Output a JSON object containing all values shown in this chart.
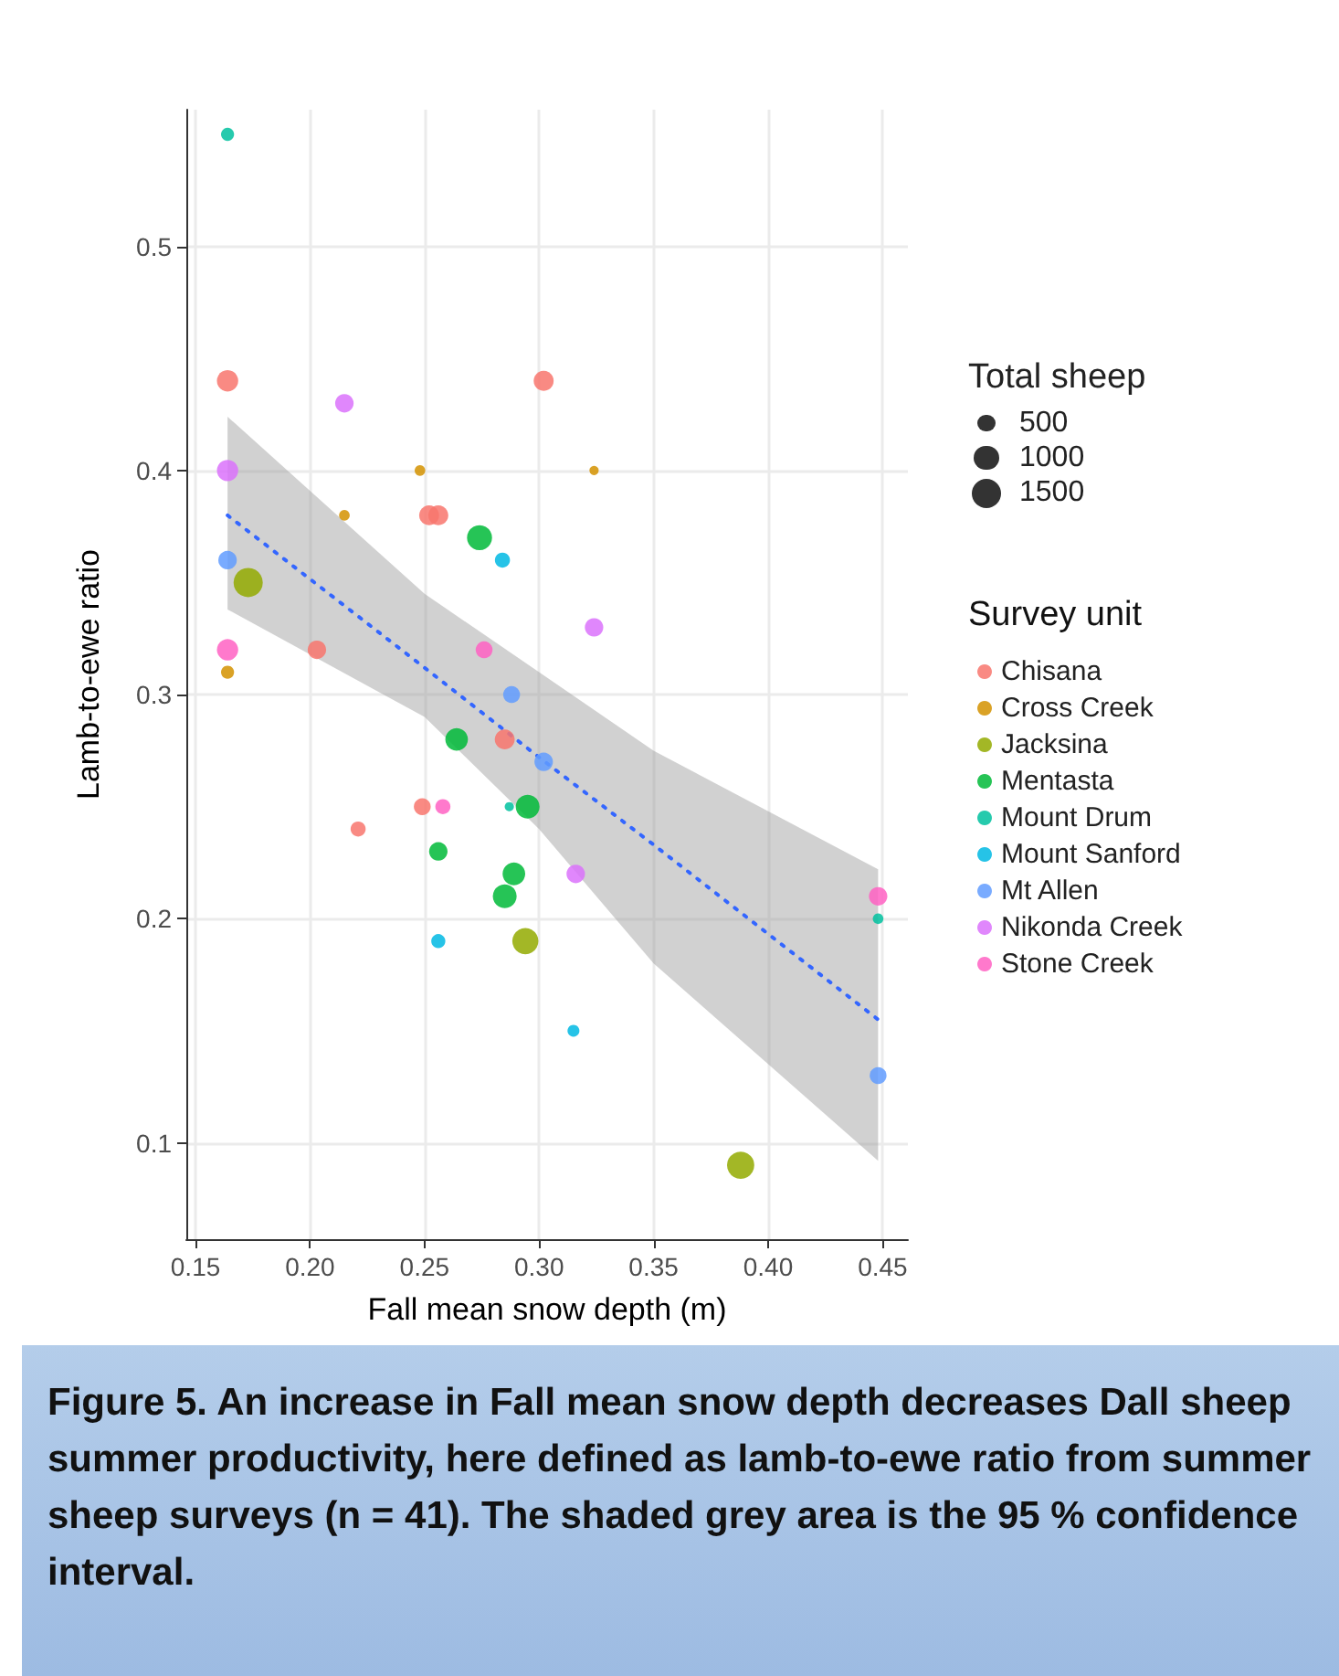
{
  "chart_data": {
    "type": "bubble",
    "xlabel": "Fall mean snow depth (m)",
    "ylabel": "Lamb-to-ewe ratio",
    "legend_title": "Survey unit",
    "annotations": [
      "Total sheep",
      "Figure 5. An increase in Fall mean snow depth decreases Dall sheep summer productivity, here defined as lamb-to-ewe ratio from summer sheep surveys (n = 41). The shaded grey area is the 95 % confidence interval."
    ],
    "size_legend": [
      500,
      1000,
      1500
    ],
    "xlim": [
      0.146,
      0.461
    ],
    "xticks": [
      {
        "value": 0.15,
        "label": "0.15"
      },
      {
        "value": 0.2,
        "label": "0.20"
      },
      {
        "value": 0.25,
        "label": "0.25"
      },
      {
        "value": 0.3,
        "label": "0.30"
      },
      {
        "value": 0.35,
        "label": "0.35"
      },
      {
        "value": 0.4,
        "label": "0.40"
      },
      {
        "value": 0.45,
        "label": "0.45"
      }
    ],
    "ylim": [
      0.057,
      0.561
    ],
    "yticks": [
      0.1,
      0.2,
      0.3,
      0.4,
      0.5
    ],
    "grid": true,
    "legend": "right",
    "series": [
      {
        "name": "Chisana",
        "color": "#f8766d",
        "x": [
          0.164,
          0.302,
          0.252,
          0.256,
          0.203,
          0.221,
          0.249,
          0.285
        ],
        "values": [
          0.44,
          0.44,
          0.38,
          0.38,
          0.32,
          0.24,
          0.25,
          0.28
        ],
        "sizes": [
          800,
          700,
          700,
          700,
          600,
          400,
          500,
          700
        ]
      },
      {
        "name": "Cross Creek",
        "color": "#d39200",
        "x": [
          0.248,
          0.324,
          0.215,
          0.164
        ],
        "values": [
          0.4,
          0.4,
          0.38,
          0.31
        ],
        "sizes": [
          200,
          150,
          200,
          300
        ]
      },
      {
        "name": "Jacksina",
        "color": "#93aa00",
        "x": [
          0.173,
          0.294,
          0.388
        ],
        "values": [
          0.35,
          0.19,
          0.09
        ],
        "sizes": [
          1500,
          1200,
          1300
        ]
      },
      {
        "name": "Mentasta",
        "color": "#00ba38",
        "x": [
          0.274,
          0.264,
          0.295,
          0.289,
          0.285,
          0.256
        ],
        "values": [
          0.37,
          0.28,
          0.25,
          0.22,
          0.21,
          0.23
        ],
        "sizes": [
          1100,
          900,
          1000,
          900,
          1000,
          600
        ]
      },
      {
        "name": "Mount Drum",
        "color": "#00c19f",
        "x": [
          0.164,
          0.287,
          0.448
        ],
        "values": [
          0.55,
          0.25,
          0.2
        ],
        "sizes": [
          300,
          150,
          200
        ]
      },
      {
        "name": "Mount Sanford",
        "color": "#00b9e3",
        "x": [
          0.284,
          0.256,
          0.315
        ],
        "values": [
          0.36,
          0.19,
          0.15
        ],
        "sizes": [
          400,
          350,
          250
        ]
      },
      {
        "name": "Mt Allen",
        "color": "#619cff",
        "x": [
          0.164,
          0.288,
          0.302,
          0.448
        ],
        "values": [
          0.36,
          0.3,
          0.27,
          0.13
        ],
        "sizes": [
          600,
          500,
          600,
          500
        ]
      },
      {
        "name": "Nikonda Creek",
        "color": "#db72fb",
        "x": [
          0.215,
          0.164,
          0.324,
          0.316
        ],
        "values": [
          0.43,
          0.4,
          0.33,
          0.22
        ],
        "sizes": [
          600,
          800,
          600,
          600
        ]
      },
      {
        "name": "Stone Creek",
        "color": "#ff61c3",
        "x": [
          0.164,
          0.276,
          0.258,
          0.448
        ],
        "values": [
          0.32,
          0.32,
          0.25,
          0.21
        ],
        "sizes": [
          800,
          500,
          400,
          600
        ]
      },
      {
        "type": "line",
        "color": "#3366ff",
        "line_style": "dotted",
        "marker": "none",
        "x": [
          0.164,
          0.25,
          0.3,
          0.35,
          0.448
        ],
        "values": [
          0.38,
          0.312,
          0.272,
          0.233,
          0.155
        ],
        "lower": [
          0.338,
          0.29,
          0.24,
          0.18,
          0.092
        ],
        "upper": [
          0.424,
          0.345,
          0.31,
          0.275,
          0.222
        ]
      }
    ]
  }
}
